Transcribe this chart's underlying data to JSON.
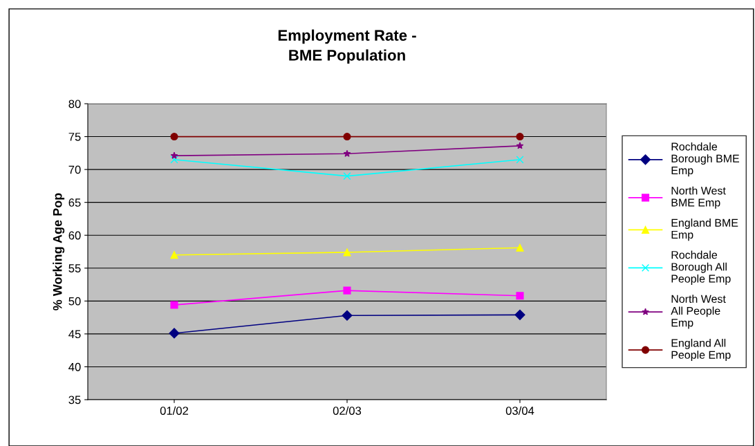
{
  "chart_data": {
    "type": "line",
    "title": "Employment Rate -\nBME Population",
    "ylabel": "% Working Age Pop",
    "categories": [
      "01/02",
      "02/03",
      "03/04"
    ],
    "series": [
      {
        "name": "Rochdale Borough BME Emp",
        "color": "#000080",
        "marker": "diamond",
        "values": [
          45.1,
          47.8,
          47.9
        ]
      },
      {
        "name": "North West BME Emp",
        "color": "#ff00ff",
        "marker": "square",
        "values": [
          49.4,
          51.6,
          50.8
        ]
      },
      {
        "name": "England BME Emp",
        "color": "#ffff00",
        "marker": "triangle",
        "values": [
          57.0,
          57.4,
          58.1
        ]
      },
      {
        "name": "Rochdale Borough All People Emp",
        "color": "#00ffff",
        "marker": "cross",
        "values": [
          71.5,
          69.0,
          71.5
        ]
      },
      {
        "name": "North West All People Emp",
        "color": "#800080",
        "marker": "star",
        "values": [
          72.1,
          72.4,
          73.6
        ]
      },
      {
        "name": "England All People Emp",
        "color": "#800000",
        "marker": "circle",
        "values": [
          75,
          75,
          75
        ]
      }
    ],
    "ylim": [
      35,
      80
    ],
    "yticks": [
      35,
      40,
      45,
      50,
      55,
      60,
      65,
      70,
      75,
      80
    ],
    "grid": "y",
    "legend": "right"
  }
}
